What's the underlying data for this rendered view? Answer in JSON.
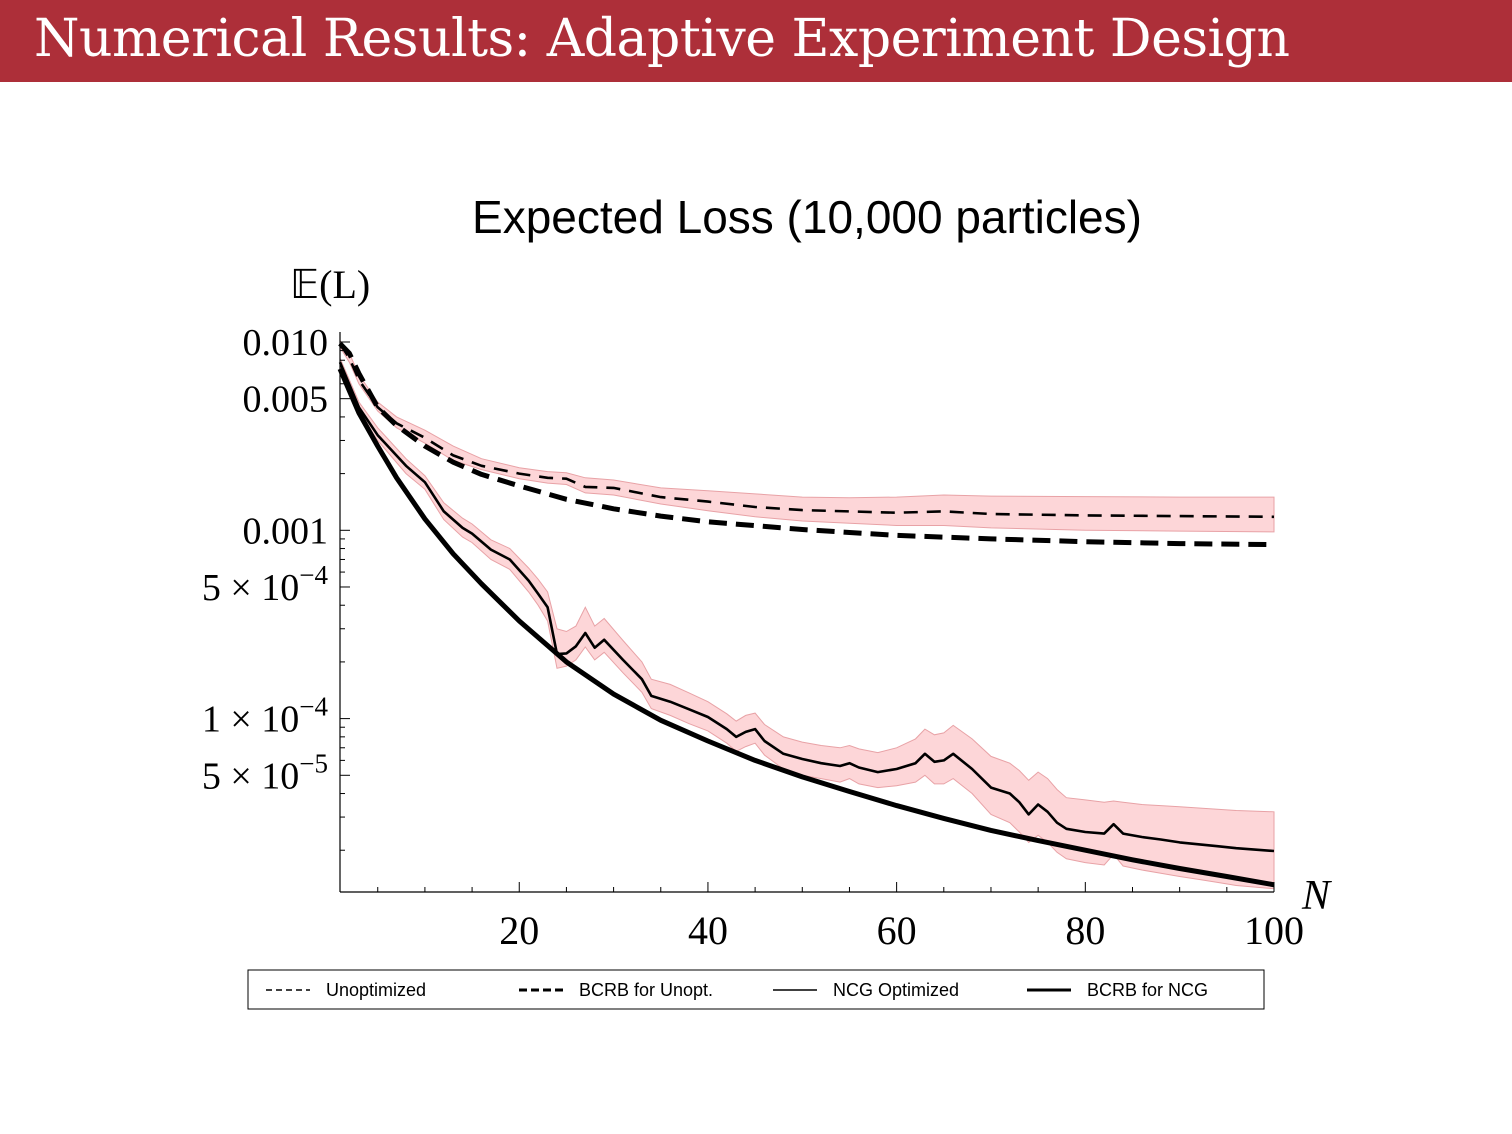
{
  "slide": {
    "title": "Numerical Results: Adaptive Experiment Design",
    "banner_color": "#ad2f39"
  },
  "chart_data": {
    "type": "line",
    "title": "Expected Loss (10,000 particles)",
    "xlabel": "N",
    "ylabel": "𝔼(L)",
    "xlim": [
      1,
      100
    ],
    "ylim": [
      1.2e-05,
      0.0105
    ],
    "yscale": "log",
    "x_ticks": [
      {
        "value": 20,
        "label": "20"
      },
      {
        "value": 40,
        "label": "40"
      },
      {
        "value": 60,
        "label": "60"
      },
      {
        "value": 80,
        "label": "80"
      },
      {
        "value": 100,
        "label": "100"
      }
    ],
    "y_ticks": [
      {
        "value": 0.01,
        "label": "0.010"
      },
      {
        "value": 0.005,
        "label": "0.005"
      },
      {
        "value": 0.001,
        "label": "0.001"
      },
      {
        "value": 0.0005,
        "label": "5 × 10",
        "exp": "−4"
      },
      {
        "value": 0.0001,
        "label": "1 × 10",
        "exp": "−4"
      },
      {
        "value": 5e-05,
        "label": "5 × 10",
        "exp": "−5"
      }
    ],
    "grid": false,
    "legend_position": "bottom",
    "band_color": "#fdd6d8",
    "series": [
      {
        "name": "Unoptimized",
        "style": "dashed-thin",
        "x": [
          1,
          2,
          3,
          5,
          7,
          10,
          13,
          16,
          20,
          23,
          25,
          27,
          30,
          35,
          40,
          45,
          50,
          55,
          60,
          65,
          70,
          80,
          90,
          100
        ],
        "y": [
          0.0098,
          0.0082,
          0.0063,
          0.0045,
          0.0037,
          0.0031,
          0.0025,
          0.0022,
          0.002,
          0.0019,
          0.00188,
          0.0017,
          0.00168,
          0.0015,
          0.00142,
          0.00133,
          0.00128,
          0.00126,
          0.00124,
          0.00126,
          0.00122,
          0.0012,
          0.00119,
          0.00118
        ],
        "band_upper": [
          0.0102,
          0.0087,
          0.0067,
          0.0048,
          0.004,
          0.0034,
          0.0028,
          0.0024,
          0.00215,
          0.00205,
          0.00202,
          0.0019,
          0.00185,
          0.00168,
          0.00162,
          0.00156,
          0.0015,
          0.00149,
          0.0015,
          0.00154,
          0.00152,
          0.00151,
          0.0015,
          0.0015
        ],
        "band_lower": [
          0.0094,
          0.0078,
          0.006,
          0.0043,
          0.0035,
          0.0029,
          0.00235,
          0.0021,
          0.00188,
          0.00178,
          0.00175,
          0.00158,
          0.00154,
          0.00138,
          0.00127,
          0.00118,
          0.00112,
          0.00109,
          0.00106,
          0.00106,
          0.00103,
          0.001,
          0.00099,
          0.00098
        ]
      },
      {
        "name": "BCRB for Unopt.",
        "style": "dashed-thick",
        "x": [
          1,
          2,
          3,
          5,
          7,
          10,
          13,
          16,
          20,
          25,
          30,
          35,
          40,
          50,
          60,
          70,
          80,
          90,
          100
        ],
        "y": [
          0.0098,
          0.0087,
          0.0068,
          0.0045,
          0.0036,
          0.0028,
          0.0023,
          0.00198,
          0.00172,
          0.00146,
          0.0013,
          0.00119,
          0.00111,
          0.00101,
          0.00094,
          0.0009,
          0.00087,
          0.00085,
          0.00084
        ]
      },
      {
        "name": "NCG Optimized",
        "style": "solid-thin",
        "x": [
          1,
          3,
          5,
          8,
          10,
          12,
          14,
          15,
          17,
          19,
          21,
          22,
          23,
          24,
          25,
          26,
          27,
          28,
          29,
          31,
          33,
          34,
          36,
          38,
          40,
          42,
          43,
          44,
          45,
          46,
          48,
          50,
          52,
          54,
          55,
          56,
          58,
          60,
          62,
          63,
          64,
          65,
          66,
          68,
          70,
          72,
          73,
          74,
          75,
          76,
          77,
          78,
          80,
          82,
          83,
          84,
          86,
          88,
          90,
          92,
          94,
          96,
          100
        ],
        "y": [
          0.0078,
          0.0045,
          0.0032,
          0.0022,
          0.0018,
          0.00126,
          0.00103,
          0.00096,
          0.00079,
          0.0007,
          0.00054,
          0.00046,
          0.00039,
          0.00022,
          0.000222,
          0.000242,
          0.000285,
          0.000238,
          0.000262,
          0.000205,
          0.000162,
          0.000132,
          0.000123,
          0.000112,
          0.000102,
          8.8e-05,
          8e-05,
          8.5e-05,
          8.8e-05,
          7.6e-05,
          6.5e-05,
          6.1e-05,
          5.8e-05,
          5.6e-05,
          5.8e-05,
          5.5e-05,
          5.2e-05,
          5.4e-05,
          5.8e-05,
          6.5e-05,
          5.9e-05,
          6e-05,
          6.5e-05,
          5.4e-05,
          4.3e-05,
          4e-05,
          3.6e-05,
          3.1e-05,
          3.5e-05,
          3.2e-05,
          2.8e-05,
          2.6e-05,
          2.5e-05,
          2.45e-05,
          2.75e-05,
          2.45e-05,
          2.35e-05,
          2.28e-05,
          2.2e-05,
          2.15e-05,
          2.1e-05,
          2.05e-05,
          1.98e-05
        ],
        "band_upper": [
          0.0082,
          0.0048,
          0.0035,
          0.0024,
          0.00195,
          0.0014,
          0.00116,
          0.00108,
          0.00089,
          0.0008,
          0.00063,
          0.00055,
          0.00047,
          0.0003,
          0.00029,
          0.00031,
          0.00039,
          0.00031,
          0.00034,
          0.00026,
          0.0002,
          0.000162,
          0.000152,
          0.000137,
          0.000123,
          0.000106,
          9.7e-05,
          0.000104,
          0.000107,
          9.3e-05,
          8e-05,
          7.5e-05,
          7.2e-05,
          7e-05,
          7.2e-05,
          6.9e-05,
          6.6e-05,
          7e-05,
          7.8e-05,
          8.8e-05,
          8.2e-05,
          8.4e-05,
          9.2e-05,
          7.8e-05,
          6.3e-05,
          5.8e-05,
          5.3e-05,
          4.7e-05,
          5.2e-05,
          4.8e-05,
          4.2e-05,
          3.8e-05,
          3.7e-05,
          3.6e-05,
          3.65e-05,
          3.6e-05,
          3.5e-05,
          3.45e-05,
          3.4e-05,
          3.35e-05,
          3.3e-05,
          3.25e-05,
          3.2e-05
        ],
        "band_lower": [
          0.0074,
          0.0042,
          0.003,
          0.002,
          0.00165,
          0.00114,
          0.00092,
          0.00086,
          0.0007,
          0.00062,
          0.00047,
          0.0004,
          0.00033,
          0.000185,
          0.00019,
          0.000205,
          0.00024,
          0.000205,
          0.000225,
          0.000175,
          0.000138,
          0.000113,
          0.000104,
          9.4e-05,
          8.6e-05,
          7.4e-05,
          6.7e-05,
          7.1e-05,
          7.4e-05,
          6.4e-05,
          5.4e-05,
          5e-05,
          4.8e-05,
          4.6e-05,
          4.8e-05,
          4.5e-05,
          4.3e-05,
          4.4e-05,
          4.6e-05,
          5e-05,
          4.5e-05,
          4.5e-05,
          4.8e-05,
          4e-05,
          3.1e-05,
          2.8e-05,
          2.5e-05,
          2.2e-05,
          2.4e-05,
          2.2e-05,
          1.95e-05,
          1.8e-05,
          1.72e-05,
          1.67e-05,
          1.9e-05,
          1.65e-05,
          1.57e-05,
          1.51e-05,
          1.45e-05,
          1.4e-05,
          1.35e-05,
          1.3e-05,
          1.25e-05
        ]
      },
      {
        "name": "BCRB for NCG",
        "style": "solid-thick",
        "x": [
          1,
          2,
          3,
          5,
          7,
          10,
          13,
          16,
          20,
          25,
          30,
          35,
          40,
          45,
          50,
          55,
          60,
          65,
          70,
          75,
          80,
          85,
          90,
          95,
          100
        ],
        "y": [
          0.0072,
          0.0055,
          0.0042,
          0.0028,
          0.0019,
          0.00115,
          0.00075,
          0.00052,
          0.00033,
          0.0002,
          0.000135,
          9.8e-05,
          7.6e-05,
          6e-05,
          4.9e-05,
          4.1e-05,
          3.45e-05,
          2.95e-05,
          2.55e-05,
          2.25e-05,
          2e-05,
          1.78e-05,
          1.6e-05,
          1.45e-05,
          1.31e-05
        ]
      }
    ]
  }
}
